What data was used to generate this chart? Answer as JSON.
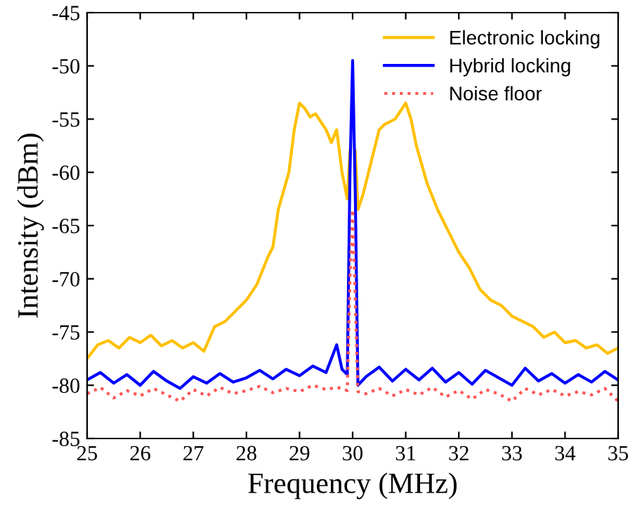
{
  "chart_data": {
    "type": "line",
    "xlabel": "Frequency (MHz)",
    "ylabel": "Intensity (dBm)",
    "xlim": [
      25,
      35
    ],
    "ylim": [
      -85,
      -45
    ],
    "xticks": [
      25,
      26,
      27,
      28,
      29,
      30,
      31,
      32,
      33,
      34,
      35
    ],
    "yticks": [
      -85,
      -80,
      -75,
      -70,
      -65,
      -60,
      -55,
      -50,
      -45
    ],
    "grid": false,
    "legend": "top right",
    "marker": "none",
    "series": [
      {
        "name": "Electronic locking",
        "color": "#ffc000",
        "line_style": "solid",
        "x": [
          25,
          25.2,
          25.4,
          25.6,
          25.8,
          26,
          26.2,
          26.4,
          26.6,
          26.8,
          27,
          27.2,
          27.4,
          27.6,
          27.8,
          28,
          28.2,
          28.4,
          28.5,
          28.6,
          28.8,
          28.9,
          29,
          29.1,
          29.2,
          29.3,
          29.5,
          29.6,
          29.7,
          29.8,
          29.9,
          29.95,
          30,
          30.05,
          30.1,
          30.2,
          30.3,
          30.5,
          30.6,
          30.8,
          31,
          31.1,
          31.2,
          31.4,
          31.6,
          31.8,
          32,
          32.2,
          32.4,
          32.6,
          32.8,
          33,
          33.2,
          33.4,
          33.6,
          33.8,
          34,
          34.2,
          34.4,
          34.6,
          34.8,
          35
        ],
        "values": [
          -77.5,
          -76.2,
          -75.8,
          -76.5,
          -75.5,
          -76,
          -75.3,
          -76.3,
          -75.8,
          -76.5,
          -76,
          -76.8,
          -74.5,
          -74,
          -73,
          -72,
          -70.5,
          -68,
          -67,
          -63.5,
          -60,
          -56,
          -53.5,
          -54,
          -54.8,
          -54.5,
          -56,
          -57.2,
          -56,
          -60,
          -62.5,
          -58,
          null,
          -58,
          -63.5,
          -62,
          -60,
          -56,
          -55.5,
          -55,
          -53.5,
          -55,
          -57.5,
          -61,
          -63.5,
          -65.5,
          -67.5,
          -69,
          -71,
          -72,
          -72.5,
          -73.5,
          -74,
          -74.5,
          -75.5,
          -75,
          -76,
          -75.8,
          -76.5,
          -76.2,
          -77,
          -76.5
        ]
      },
      {
        "name": "Hybrid locking",
        "color": "#0000ff",
        "line_style": "solid",
        "x": [
          25,
          25.25,
          25.5,
          25.75,
          26,
          26.25,
          26.5,
          26.75,
          27,
          27.25,
          27.5,
          27.75,
          28,
          28.25,
          28.5,
          28.75,
          29,
          29.25,
          29.5,
          29.7,
          29.8,
          29.9,
          29.95,
          30,
          30.05,
          30.1,
          30.25,
          30.5,
          30.75,
          31,
          31.25,
          31.5,
          31.75,
          32,
          32.25,
          32.5,
          32.75,
          33,
          33.25,
          33.5,
          33.75,
          34,
          34.25,
          34.5,
          34.75,
          35
        ],
        "values": [
          -79.5,
          -78.8,
          -79.8,
          -79,
          -80,
          -78.7,
          -79.6,
          -80.3,
          -79.2,
          -79.8,
          -78.9,
          -79.7,
          -79.3,
          -78.6,
          -79.4,
          -78.5,
          -79.1,
          -78.2,
          -78.8,
          -76.2,
          -78.5,
          -79,
          -60,
          -49.5,
          -62,
          -80,
          -79.2,
          -78.3,
          -79.6,
          -78.5,
          -79.5,
          -78.4,
          -79.7,
          -78.8,
          -79.9,
          -78.6,
          -79.3,
          -80,
          -78.4,
          -79.6,
          -78.9,
          -79.8,
          -79,
          -79.7,
          -78.7,
          -79.5
        ]
      },
      {
        "name": "Noise floor",
        "color": "#ff5555",
        "line_style": "dotted",
        "x": [
          25,
          25.25,
          25.5,
          25.75,
          26,
          26.25,
          26.5,
          26.75,
          27,
          27.25,
          27.5,
          27.75,
          28,
          28.25,
          28.5,
          28.75,
          29,
          29.25,
          29.5,
          29.7,
          29.8,
          29.9,
          29.95,
          30,
          30.05,
          30.1,
          30.25,
          30.5,
          30.75,
          31,
          31.25,
          31.5,
          31.75,
          32,
          32.25,
          32.5,
          32.75,
          33,
          33.25,
          33.5,
          33.75,
          34,
          34.25,
          34.5,
          34.75,
          35
        ],
        "values": [
          -80.8,
          -80.2,
          -81.2,
          -80.5,
          -81,
          -80.3,
          -80.9,
          -81.5,
          -80.4,
          -81,
          -80.2,
          -80.8,
          -80.5,
          -80.1,
          -80.7,
          -80.3,
          -80.6,
          -80,
          -80.4,
          -80.2,
          -80.3,
          -80.5,
          -70,
          -63.5,
          -72,
          -80.6,
          -80.8,
          -80.3,
          -81,
          -80.4,
          -80.9,
          -80.2,
          -81.1,
          -80.5,
          -81.3,
          -80.4,
          -80.8,
          -81.5,
          -80.3,
          -80.9,
          -80.4,
          -81,
          -80.6,
          -80.9,
          -80.3,
          -81.5
        ]
      }
    ]
  }
}
